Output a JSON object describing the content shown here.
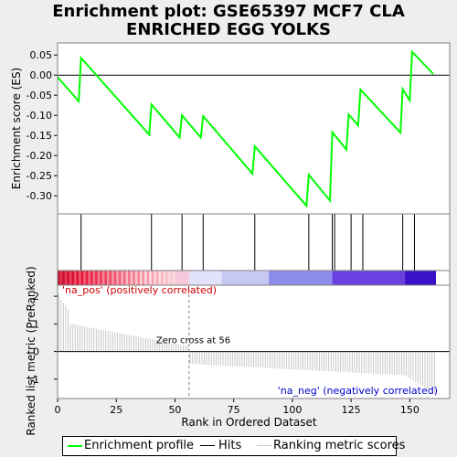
{
  "title_line1": "Enrichment plot: GSE65397 MCF7 CLA",
  "title_line2": "ENRICHED EGG YOLKS",
  "colors": {
    "enrichment_line": "#00ff00",
    "hits": "#000000",
    "ranking_bars": "#c8c8c8",
    "pos_label": "#cc0000",
    "neg_label": "#0000cc",
    "zero_cross_line": "#808080"
  },
  "chart_data": {
    "type": "line",
    "n_genes": 161,
    "enrichment": {
      "ylabel": "Enrichment score (ES)",
      "ylim": [
        -0.345,
        0.08
      ],
      "yticks": [
        0.05,
        0.0,
        -0.05,
        -0.1,
        -0.15,
        -0.2,
        -0.25,
        -0.3
      ],
      "ytick_labels": [
        "0.05",
        "0.00",
        "-0.05",
        "-0.10",
        "-0.15",
        "-0.20",
        "-0.25",
        "-0.30"
      ],
      "x": [
        0,
        9,
        10,
        39,
        40,
        52,
        53,
        61,
        62,
        83,
        84,
        106,
        107,
        116,
        117,
        123,
        124,
        128,
        129,
        146,
        147,
        150,
        151,
        160
      ],
      "y": [
        -0.005,
        -0.065,
        0.043,
        -0.148,
        -0.073,
        -0.155,
        -0.1,
        -0.155,
        -0.102,
        -0.245,
        -0.177,
        -0.325,
        -0.248,
        -0.312,
        -0.142,
        -0.185,
        -0.098,
        -0.125,
        -0.036,
        -0.143,
        -0.035,
        -0.063,
        0.058,
        0.003
      ]
    },
    "hits": [
      10,
      40,
      53,
      62,
      84,
      107,
      117,
      118,
      125,
      130,
      147,
      152
    ],
    "ranking": {
      "xlabel": "Rank in Ordered Dataset",
      "ylabel": "Ranked list metric (PreRanked)",
      "ylim": [
        -1.7,
        2.4
      ],
      "yticks": [
        2,
        1,
        0,
        -1
      ],
      "ytick_labels": [
        "2",
        "1",
        "0",
        "-1"
      ],
      "xlim": [
        0,
        167
      ],
      "xticks": [
        0,
        25,
        50,
        75,
        100,
        125,
        150
      ],
      "xtick_labels": [
        "0",
        "25",
        "50",
        "75",
        "100",
        "125",
        "150"
      ],
      "zero_cross": 56,
      "zero_cross_label": "Zero cross at 56",
      "pos_label": "'na_pos' (positively correlated)",
      "neg_label": "'na_neg' (negatively correlated)"
    }
  },
  "legend": {
    "enrichment_profile": "Enrichment profile",
    "hits": "Hits",
    "ranking_metric_scores": "Ranking metric scores"
  }
}
